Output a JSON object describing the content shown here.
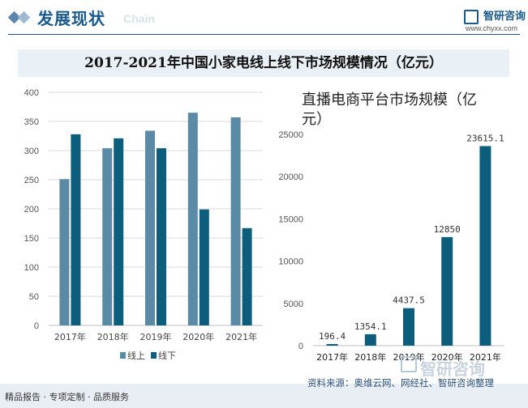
{
  "header": {
    "title": "发展现状",
    "subtitle": "Chain",
    "brand_name": "智研咨询",
    "brand_url": "www.chyxx.com"
  },
  "banner": {
    "title": "2017-2021年中国小家电线上线下市场规模情况（亿元）"
  },
  "footer": {
    "left": "精品报告 · 专项定制 · 品质服务",
    "source": "资料来源：奥维云网、网经社、智研咨询整理",
    "watermark": "智研咨询"
  },
  "colors": {
    "online": "#5b8aa6",
    "offline": "#0d5e7c",
    "ecom": "#0d5e7c",
    "brand": "#1a5a8a"
  },
  "chart_data": [
    {
      "type": "bar",
      "title": "",
      "categories": [
        "2017年",
        "2018年",
        "2019年",
        "2020年",
        "2021年"
      ],
      "series": [
        {
          "name": "线上",
          "values": [
            251,
            304,
            334,
            365,
            357
          ]
        },
        {
          "name": "线下",
          "values": [
            328,
            321,
            304,
            199,
            167
          ]
        }
      ],
      "yticks": [
        "0",
        "50",
        "100",
        "150",
        "200",
        "250",
        "300",
        "350",
        "400"
      ],
      "ylim": [
        0,
        400
      ],
      "xlabel": "",
      "ylabel": "",
      "legend": "bottom",
      "grid": true
    },
    {
      "type": "bar",
      "title": "直播电商平台市场规模（亿元）",
      "categories": [
        "2017年",
        "2018年",
        "2019年",
        "2020年",
        "2021年"
      ],
      "values": [
        196.4,
        1354.1,
        4437.5,
        12850,
        23615.1
      ],
      "labels": [
        "196.4",
        "1354.1",
        "4437.5",
        "12850",
        "23615.1"
      ],
      "yticks": [
        "0",
        "5000",
        "10000",
        "15000",
        "20000",
        "25000"
      ],
      "ylim": [
        0,
        25000
      ],
      "xlabel": "",
      "ylabel": "",
      "grid": false
    }
  ]
}
